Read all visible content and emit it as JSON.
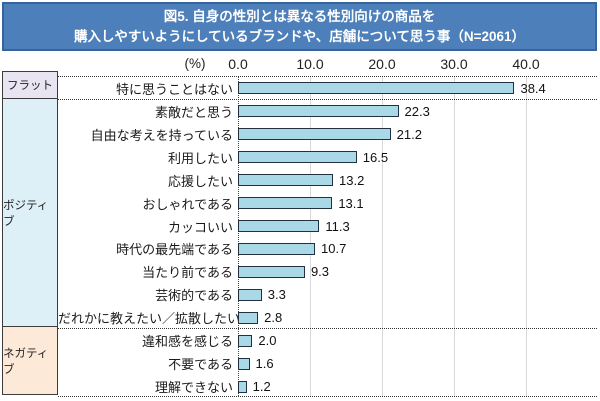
{
  "title": {
    "line1": "図5. 自身の性別とは異なる性別向けの商品を",
    "line2": "購入しやすいようにしているブランドや、店舗について思う事（N=2061）"
  },
  "axis": {
    "unit": "(%)",
    "ticks": [
      "0.0",
      "10.0",
      "20.0",
      "30.0",
      "40.0"
    ]
  },
  "chart_data": {
    "type": "bar",
    "orientation": "horizontal",
    "title": "図5. 自身の性別とは異なる性別向けの商品を購入しやすいようにしているブランドや、店舗について思う事（N=2061）",
    "sample_size": 2061,
    "xlabel": "(%)",
    "xlim": [
      0,
      40
    ],
    "grid": true,
    "legend": "none",
    "bar_color": "#a9d8e7",
    "bar_border_color": "#22313f",
    "groups": [
      {
        "name": "フラット",
        "bg": "#e9e4f2",
        "items": [
          {
            "label": "特に思うことはない",
            "value": 38.4
          }
        ]
      },
      {
        "name": "ポジティブ",
        "bg": "#def0f7",
        "items": [
          {
            "label": "素敵だと思う",
            "value": 22.3
          },
          {
            "label": "自由な考えを持っている",
            "value": 21.2
          },
          {
            "label": "利用したい",
            "value": 16.5
          },
          {
            "label": "応援したい",
            "value": 13.2
          },
          {
            "label": "おしゃれである",
            "value": 13.1
          },
          {
            "label": "カッコいい",
            "value": 11.3
          },
          {
            "label": "時代の最先端である",
            "value": 10.7
          },
          {
            "label": "当たり前である",
            "value": 9.3
          },
          {
            "label": "芸術的である",
            "value": 3.3
          },
          {
            "label": "だれかに教えたい／拡散したい",
            "value": 2.8
          }
        ]
      },
      {
        "name": "ネガティブ",
        "bg": "#fde9d8",
        "items": [
          {
            "label": "違和感を感じる",
            "value": 2.0
          },
          {
            "label": "不要である",
            "value": 1.6
          },
          {
            "label": "理解できない",
            "value": 1.2
          }
        ]
      }
    ]
  }
}
